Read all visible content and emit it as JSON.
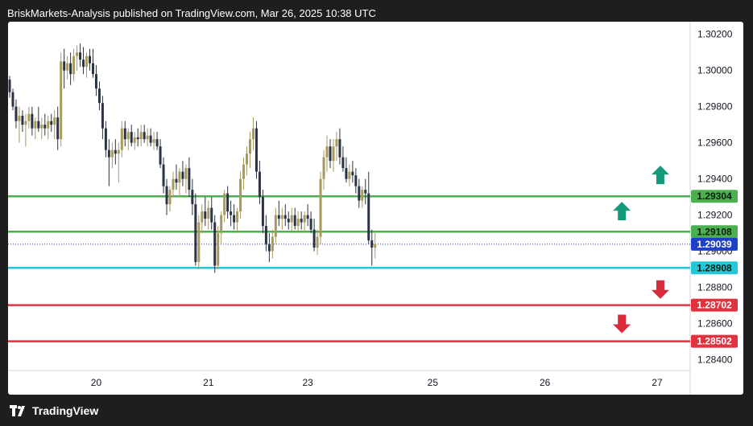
{
  "header": {
    "text": "BriskMarkets-Analysis published on TradingView.com, Mar 26, 2025 10:38 UTC"
  },
  "footer": {
    "brand": "TradingView"
  },
  "colors": {
    "bull": "#a89a5c",
    "bear": "#2b3444",
    "resistance": "#4caf50",
    "support_cyan": "#26c6da",
    "support_red": "#e0323f",
    "current_price": "#1e40c8",
    "arrow_up": "#149a7a",
    "arrow_down": "#d92a3b"
  },
  "chart_data": {
    "type": "candlestick",
    "y_ticks": [
      "1.30200",
      "1.30000",
      "1.29800",
      "1.29600",
      "1.29400",
      "1.29200",
      "1.29000",
      "1.28800",
      "1.28600",
      "1.28400"
    ],
    "ylim": [
      1.2834,
      1.3027
    ],
    "x_ticks": [
      {
        "label": "20",
        "index": 27
      },
      {
        "label": "21",
        "index": 62
      },
      {
        "label": "23",
        "index": 93
      },
      {
        "label": "25",
        "index": 132
      },
      {
        "label": "26",
        "index": 167
      },
      {
        "label": "27",
        "index": 202
      }
    ],
    "levels": [
      {
        "label": "1.29304",
        "value": 1.29304,
        "kind": "resistance"
      },
      {
        "label": "1.29108",
        "value": 1.29108,
        "kind": "resistance"
      },
      {
        "label": "1.29039",
        "value": 1.29039,
        "kind": "current"
      },
      {
        "label": "1.28908",
        "value": 1.28908,
        "kind": "support_cyan"
      },
      {
        "label": "1.28702",
        "value": 1.28702,
        "kind": "support_red"
      },
      {
        "label": "1.28502",
        "value": 1.28502,
        "kind": "support_red"
      }
    ],
    "arrows": [
      {
        "direction": "up",
        "index": 203,
        "value": 1.2942
      },
      {
        "direction": "up",
        "index": 191,
        "value": 1.2922
      },
      {
        "direction": "down",
        "index": 203,
        "value": 1.2879
      },
      {
        "direction": "down",
        "index": 191,
        "value": 1.286
      }
    ],
    "candles": [
      [
        1.2995,
        1.2997,
        1.2985,
        1.2988
      ],
      [
        1.2988,
        1.299,
        1.2978,
        1.298
      ],
      [
        1.298,
        1.2984,
        1.2968,
        1.2972
      ],
      [
        1.2972,
        1.298,
        1.296,
        1.2975
      ],
      [
        1.2975,
        1.2978,
        1.2966,
        1.297
      ],
      [
        1.297,
        1.2976,
        1.2958,
        1.2972
      ],
      [
        1.2972,
        1.298,
        1.2968,
        1.2976
      ],
      [
        1.2976,
        1.298,
        1.2964,
        1.2968
      ],
      [
        1.2968,
        1.2974,
        1.2962,
        1.2972
      ],
      [
        1.2972,
        1.298,
        1.2966,
        1.2968
      ],
      [
        1.2968,
        1.2974,
        1.2962,
        1.297
      ],
      [
        1.297,
        1.2976,
        1.2964,
        1.2968
      ],
      [
        1.2968,
        1.2975,
        1.2962,
        1.2972
      ],
      [
        1.2972,
        1.2976,
        1.2966,
        1.297
      ],
      [
        1.297,
        1.2978,
        1.2962,
        1.2974
      ],
      [
        1.2974,
        1.298,
        1.2956,
        1.2962
      ],
      [
        1.2962,
        1.301,
        1.2958,
        1.3005
      ],
      [
        1.3005,
        1.3012,
        1.299,
        1.3
      ],
      [
        1.3,
        1.3008,
        1.2995,
        1.3004
      ],
      [
        1.3004,
        1.301,
        1.2992,
        1.2998
      ],
      [
        1.2998,
        1.3012,
        1.2994,
        1.3008
      ],
      [
        1.3008,
        1.3014,
        1.3,
        1.301
      ],
      [
        1.301,
        1.3015,
        1.3002,
        1.3006
      ],
      [
        1.3006,
        1.3013,
        1.2998,
        1.3002
      ],
      [
        1.3002,
        1.301,
        1.2996,
        1.3008
      ],
      [
        1.3008,
        1.3012,
        1.3,
        1.3004
      ],
      [
        1.3004,
        1.3012,
        1.2996,
        1.2998
      ],
      [
        1.2998,
        1.3003,
        1.2986,
        1.299
      ],
      [
        1.299,
        1.2994,
        1.2978,
        1.2982
      ],
      [
        1.2982,
        1.2986,
        1.2962,
        1.2968
      ],
      [
        1.2968,
        1.2972,
        1.2952,
        1.2956
      ],
      [
        1.2956,
        1.2962,
        1.2936,
        1.2952
      ],
      [
        1.2952,
        1.296,
        1.2946,
        1.2956
      ],
      [
        1.2956,
        1.2962,
        1.2948,
        1.2954
      ],
      [
        1.2954,
        1.296,
        1.2938,
        1.2956
      ],
      [
        1.2956,
        1.2972,
        1.2952,
        1.2968
      ],
      [
        1.2968,
        1.2972,
        1.2958,
        1.2962
      ],
      [
        1.2962,
        1.2968,
        1.2956,
        1.2966
      ],
      [
        1.2966,
        1.297,
        1.2958,
        1.296
      ],
      [
        1.296,
        1.2966,
        1.2956,
        1.2963
      ],
      [
        1.2963,
        1.2968,
        1.2958,
        1.2962
      ],
      [
        1.2962,
        1.297,
        1.2958,
        1.2966
      ],
      [
        1.2966,
        1.297,
        1.296,
        1.2962
      ],
      [
        1.2962,
        1.2968,
        1.2958,
        1.2964
      ],
      [
        1.2964,
        1.2968,
        1.2958,
        1.296
      ],
      [
        1.296,
        1.2966,
        1.2956,
        1.2962
      ],
      [
        1.2962,
        1.2966,
        1.2956,
        1.2958
      ],
      [
        1.2958,
        1.2962,
        1.2946,
        1.2948
      ],
      [
        1.2948,
        1.2952,
        1.2932,
        1.2936
      ],
      [
        1.2936,
        1.294,
        1.292,
        1.2926
      ],
      [
        1.2926,
        1.2936,
        1.2922,
        1.2934
      ],
      [
        1.2934,
        1.2944,
        1.293,
        1.294
      ],
      [
        1.294,
        1.2948,
        1.2934,
        1.2938
      ],
      [
        1.2938,
        1.2946,
        1.293,
        1.2944
      ],
      [
        1.2944,
        1.295,
        1.2936,
        1.294
      ],
      [
        1.294,
        1.2948,
        1.2932,
        1.2946
      ],
      [
        1.2946,
        1.2952,
        1.293,
        1.2934
      ],
      [
        1.2934,
        1.294,
        1.292,
        1.2926
      ],
      [
        1.2926,
        1.2932,
        1.2892,
        1.2894
      ],
      [
        1.2894,
        1.292,
        1.289,
        1.2916
      ],
      [
        1.2916,
        1.2926,
        1.291,
        1.2922
      ],
      [
        1.2922,
        1.293,
        1.2914,
        1.2918
      ],
      [
        1.2918,
        1.2928,
        1.2912,
        1.2924
      ],
      [
        1.2924,
        1.293,
        1.2912,
        1.2916
      ],
      [
        1.2916,
        1.292,
        1.2888,
        1.2892
      ],
      [
        1.2892,
        1.2914,
        1.289,
        1.291
      ],
      [
        1.291,
        1.2922,
        1.2904,
        1.292
      ],
      [
        1.292,
        1.2934,
        1.2916,
        1.2932
      ],
      [
        1.2932,
        1.2936,
        1.2918,
        1.2922
      ],
      [
        1.2922,
        1.2928,
        1.2914,
        1.292
      ],
      [
        1.292,
        1.2926,
        1.2912,
        1.2916
      ],
      [
        1.2916,
        1.2924,
        1.291,
        1.2922
      ],
      [
        1.2922,
        1.2944,
        1.2918,
        1.294
      ],
      [
        1.294,
        1.2952,
        1.2934,
        1.2948
      ],
      [
        1.2948,
        1.2958,
        1.2942,
        1.2954
      ],
      [
        1.2954,
        1.2966,
        1.2946,
        1.2962
      ],
      [
        1.2962,
        1.2974,
        1.2956,
        1.2968
      ],
      [
        1.2968,
        1.2972,
        1.294,
        1.2944
      ],
      [
        1.2944,
        1.295,
        1.2926,
        1.293
      ],
      [
        1.293,
        1.2934,
        1.291,
        1.2914
      ],
      [
        1.2914,
        1.292,
        1.29,
        1.2904
      ],
      [
        1.2904,
        1.291,
        1.2894,
        1.29
      ],
      [
        1.29,
        1.2912,
        1.2896,
        1.2908
      ],
      [
        1.2908,
        1.2924,
        1.2904,
        1.292
      ],
      [
        1.292,
        1.2928,
        1.2914,
        1.2918
      ],
      [
        1.2918,
        1.2924,
        1.2912,
        1.292
      ],
      [
        1.292,
        1.2926,
        1.2914,
        1.2918
      ],
      [
        1.2918,
        1.2922,
        1.2912,
        1.2916
      ],
      [
        1.2916,
        1.2924,
        1.291,
        1.292
      ],
      [
        1.292,
        1.2924,
        1.2912,
        1.2914
      ],
      [
        1.2914,
        1.2922,
        1.291,
        1.2918
      ],
      [
        1.2918,
        1.2922,
        1.2912,
        1.2916
      ],
      [
        1.2916,
        1.2922,
        1.291,
        1.292
      ],
      [
        1.292,
        1.2926,
        1.2914,
        1.2918
      ],
      [
        1.2918,
        1.2922,
        1.291,
        1.2912
      ],
      [
        1.2912,
        1.2918,
        1.29,
        1.2902
      ],
      [
        1.2902,
        1.2912,
        1.2898,
        1.2908
      ],
      [
        1.2908,
        1.2944,
        1.2904,
        1.294
      ],
      [
        1.294,
        1.2956,
        1.2934,
        1.2952
      ],
      [
        1.2952,
        1.2964,
        1.2944,
        1.2958
      ],
      [
        1.2958,
        1.2962,
        1.2946,
        1.295
      ],
      [
        1.295,
        1.2962,
        1.2944,
        1.2958
      ],
      [
        1.2958,
        1.2966,
        1.295,
        1.2962
      ],
      [
        1.2962,
        1.2968,
        1.2948,
        1.2952
      ],
      [
        1.2952,
        1.2958,
        1.2944,
        1.2946
      ],
      [
        1.2946,
        1.2952,
        1.2938,
        1.294
      ],
      [
        1.294,
        1.2948,
        1.2936,
        1.2944
      ],
      [
        1.2944,
        1.295,
        1.2938,
        1.2942
      ],
      [
        1.2942,
        1.2946,
        1.2932,
        1.2936
      ],
      [
        1.2936,
        1.294,
        1.2924,
        1.2928
      ],
      [
        1.2928,
        1.2936,
        1.2924,
        1.2934
      ],
      [
        1.2934,
        1.294,
        1.2926,
        1.2932
      ],
      [
        1.2932,
        1.2944,
        1.2904,
        1.2906
      ],
      [
        1.2906,
        1.2912,
        1.2892,
        1.2902
      ],
      [
        1.2902,
        1.291,
        1.2896,
        1.2904
      ]
    ]
  }
}
